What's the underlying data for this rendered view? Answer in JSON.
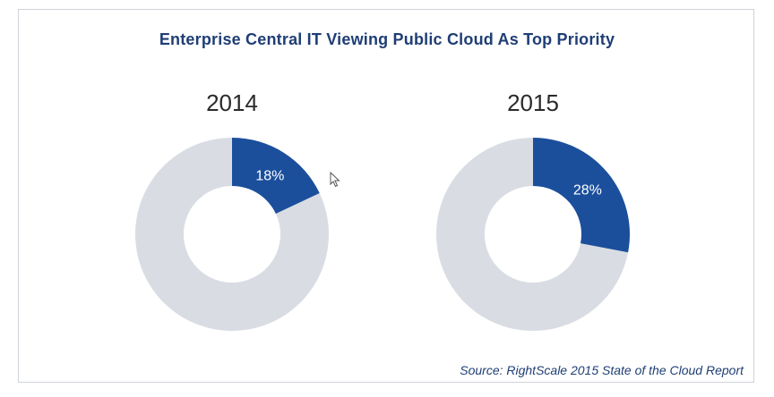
{
  "chart_data": [
    {
      "type": "pie",
      "subtype": "donut",
      "title": "Enterprise Central IT Viewing Public Cloud As Top Priority",
      "label": "2014",
      "value": 18,
      "value_label": "18%",
      "colors": {
        "highlight": "#1b4f9c",
        "rest": "#d9dde3"
      }
    },
    {
      "type": "pie",
      "subtype": "donut",
      "title": "Enterprise Central IT Viewing Public Cloud As Top Priority",
      "label": "2015",
      "value": 28,
      "value_label": "28%",
      "colors": {
        "highlight": "#1b4f9c",
        "rest": "#d9dde3"
      }
    }
  ],
  "header": {
    "title": "Enterprise Central IT Viewing Public Cloud As Top Priority"
  },
  "footer": {
    "source": "Source: RightScale 2015 State of the Cloud Report"
  }
}
